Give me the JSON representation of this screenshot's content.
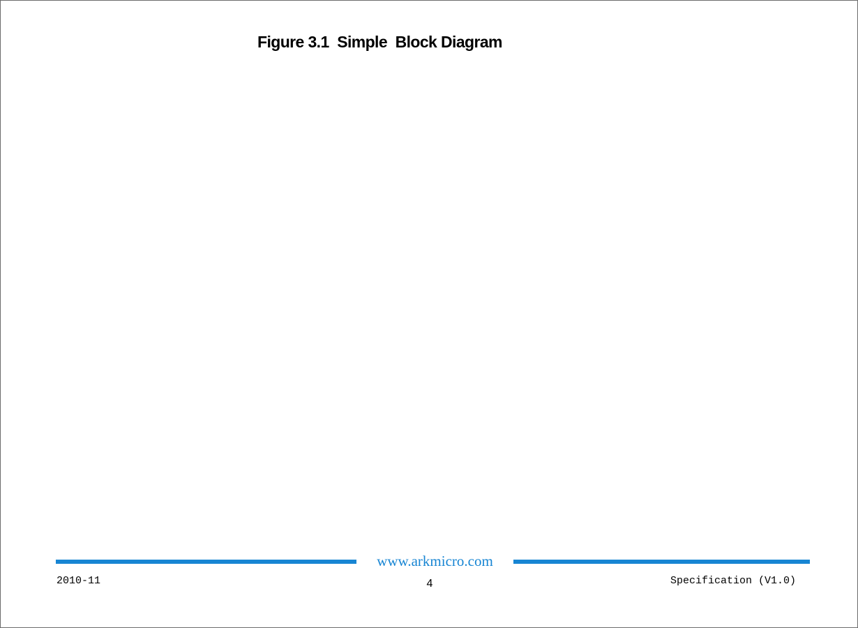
{
  "figure": {
    "title": "Figure 3.1  Simple  Block Diagram"
  },
  "footer": {
    "url": "www.arkmicro.com",
    "date": "2010-11",
    "page_number": "4",
    "document": "Specification (V1.0)"
  },
  "colors": {
    "accent": "#1785d3",
    "text": "#000000",
    "page_border": "#6b6b6b"
  }
}
